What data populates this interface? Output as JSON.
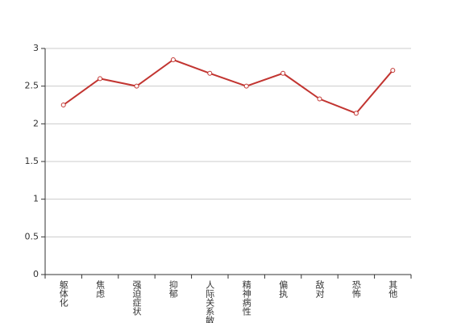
{
  "chart_data": {
    "type": "line",
    "categories": [
      "躯体化",
      "焦虑",
      "强迫症状",
      "抑郁",
      "人际关系敏感",
      "精神病性",
      "偏执",
      "敌对",
      "恐怖",
      "其他"
    ],
    "values": [
      2.25,
      2.6,
      2.5,
      2.85,
      2.67,
      2.5,
      2.67,
      2.33,
      2.14,
      2.71
    ],
    "color": "#c23531",
    "ylim": [
      0,
      3
    ],
    "yticks": [
      0,
      0.5,
      1,
      1.5,
      2,
      2.5,
      3
    ],
    "grid": true
  }
}
